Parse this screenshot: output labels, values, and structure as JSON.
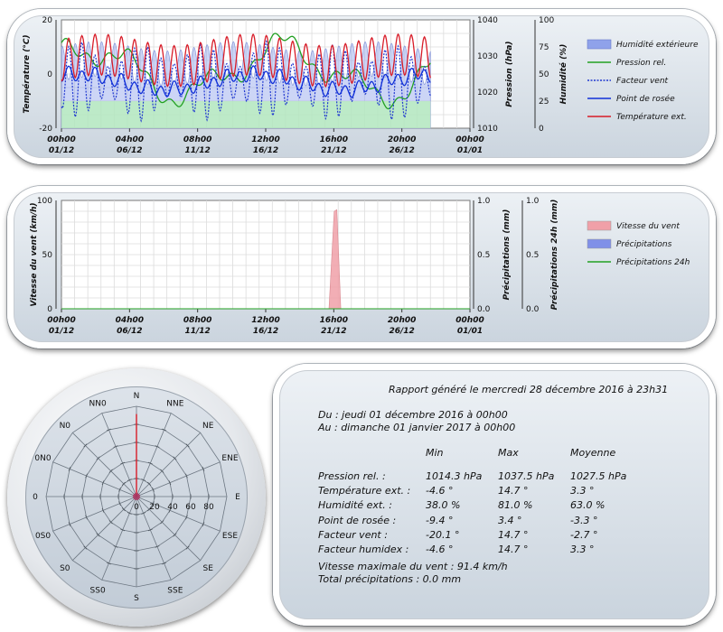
{
  "chart_data": [
    {
      "type": "line",
      "y_left": {
        "label": "Température (°C)",
        "ticks": [
          "20",
          "0",
          "-20"
        ],
        "range": [
          -20,
          20
        ]
      },
      "y_pressure": {
        "label": "Pression (hPa)",
        "ticks": [
          "1040",
          "1030",
          "1020",
          "1010"
        ],
        "range": [
          1010,
          1040
        ]
      },
      "y_humidity": {
        "label": "Humidité (%)",
        "ticks": [
          "100",
          "75",
          "50",
          "25",
          "0"
        ],
        "range": [
          0,
          100
        ]
      },
      "x_ticks": [
        [
          "00h00",
          "01/12"
        ],
        [
          "04h00",
          "06/12"
        ],
        [
          "08h00",
          "11/12"
        ],
        [
          "12h00",
          "16/12"
        ],
        [
          "16h00",
          "21/12"
        ],
        [
          "20h00",
          "26/12"
        ],
        [
          "00h00",
          "01/01"
        ]
      ],
      "x_range_days": [
        0,
        31
      ],
      "data_end_day": 28,
      "grid": true,
      "legend": [
        {
          "label": "Humidité extérieure",
          "color": "#8fa2ea",
          "style": "area"
        },
        {
          "label": "Pression rel.",
          "color": "#22a022",
          "style": "line"
        },
        {
          "label": "Facteur vent",
          "color": "#2038d0",
          "style": "dotted"
        },
        {
          "label": "Point de rosée",
          "color": "#1030d8",
          "style": "line"
        },
        {
          "label": "Température ext.",
          "color": "#d81c28",
          "style": "line"
        }
      ],
      "series": [
        {
          "name": "Température ext.",
          "min": -4.6,
          "max": 14.7,
          "mean": 3.3
        },
        {
          "name": "Point de rosée",
          "min": -9.4,
          "max": 3.4,
          "mean": -3.3
        },
        {
          "name": "Facteur vent",
          "min": -20.1,
          "max": 14.7,
          "mean": -2.7
        },
        {
          "name": "Pression rel.",
          "min": 1014.3,
          "max": 1037.5,
          "mean": 1027.5
        },
        {
          "name": "Humidité extérieure",
          "min": 38.0,
          "max": 81.0,
          "mean": 63.0
        }
      ]
    },
    {
      "type": "area",
      "y_left": {
        "label": "Vitesse du vent (km/h)",
        "ticks": [
          "100",
          "50",
          "0"
        ],
        "range": [
          0,
          100
        ]
      },
      "y_precip": {
        "label": "Précipitations (mm)",
        "ticks": [
          "1.0",
          "0.5",
          "0.0"
        ],
        "range": [
          0,
          1
        ]
      },
      "y_precip24": {
        "label": "Précipitations 24h (mm)",
        "ticks": [
          "1.0",
          "0.5",
          "0.0"
        ],
        "range": [
          0,
          1
        ]
      },
      "x_ticks": [
        [
          "00h00",
          "01/12"
        ],
        [
          "04h00",
          "06/12"
        ],
        [
          "08h00",
          "11/12"
        ],
        [
          "12h00",
          "16/12"
        ],
        [
          "16h00",
          "21/12"
        ],
        [
          "20h00",
          "26/12"
        ],
        [
          "00h00",
          "01/01"
        ]
      ],
      "x_range_days": [
        0,
        31
      ],
      "grid": true,
      "legend": [
        {
          "label": "Vitesse du vent",
          "color": "#f0a0a8",
          "style": "area"
        },
        {
          "label": "Précipitations",
          "color": "#8090e8",
          "style": "area"
        },
        {
          "label": "Précipitations 24h",
          "color": "#22a022",
          "style": "line"
        }
      ],
      "series": [
        {
          "name": "Vitesse du vent",
          "points": [
            [
              0,
              0
            ],
            [
              20.3,
              0
            ],
            [
              20.7,
              90
            ],
            [
              20.9,
              91.4
            ],
            [
              21.2,
              0
            ],
            [
              31,
              0
            ]
          ]
        },
        {
          "name": "Précipitations",
          "points": [
            [
              0,
              0
            ],
            [
              31,
              0
            ]
          ]
        },
        {
          "name": "Précipitations 24h",
          "points": [
            [
              0,
              0
            ],
            [
              31,
              0
            ]
          ]
        }
      ]
    },
    {
      "type": "radar",
      "directions": [
        "N",
        "NNE",
        "NE",
        "ENE",
        "E",
        "ESE",
        "SE",
        "SSE",
        "S",
        "SSO",
        "SO",
        "OSO",
        "O",
        "ONO",
        "NO",
        "NNO"
      ],
      "direction_labels": [
        "N",
        "NNE",
        "NE",
        "ENE",
        "E",
        "ESE",
        "SE",
        "SSE",
        "S",
        "SS0",
        "S0",
        "0S0",
        "0",
        "0N0",
        "N0",
        "NN0"
      ],
      "radial_ticks": [
        "0",
        "20",
        "40",
        "60",
        "80"
      ],
      "range": [
        0,
        100
      ],
      "values": [
        91.4,
        0,
        0,
        0,
        0,
        0,
        0,
        0,
        0,
        0,
        0,
        0,
        0,
        0,
        0,
        0
      ]
    }
  ],
  "report": {
    "title": "Rapport généré le mercredi 28 décembre 2016 à 23h31",
    "from": "Du : jeudi 01 décembre 2016 à 00h00",
    "to": "Au : dimanche 01 janvier 2017 à 00h00",
    "headers": [
      "Min",
      "Max",
      "Moyenne"
    ],
    "rows": [
      {
        "label": "Pression rel. :",
        "min": "1014.3 hPa",
        "max": "1037.5 hPa",
        "mean": "1027.5 hPa"
      },
      {
        "label": "Température ext. :",
        "min": "-4.6 °",
        "max": "14.7 °",
        "mean": "3.3 °"
      },
      {
        "label": "Humidité ext. :",
        "min": "38.0 %",
        "max": "81.0 %",
        "mean": "63.0 %"
      },
      {
        "label": "Point de rosée :",
        "min": "-9.4 °",
        "max": "3.4 °",
        "mean": "-3.3 °"
      },
      {
        "label": "Facteur vent :",
        "min": "-20.1 °",
        "max": "14.7 °",
        "mean": "-2.7 °"
      },
      {
        "label": "Facteur humidex :",
        "min": "-4.6 °",
        "max": "14.7 °",
        "mean": "3.3 °"
      }
    ],
    "max_wind": "Vitesse maximale du vent : 91.4 km/h",
    "total_precip": "Total précipitations : 0.0 mm"
  }
}
